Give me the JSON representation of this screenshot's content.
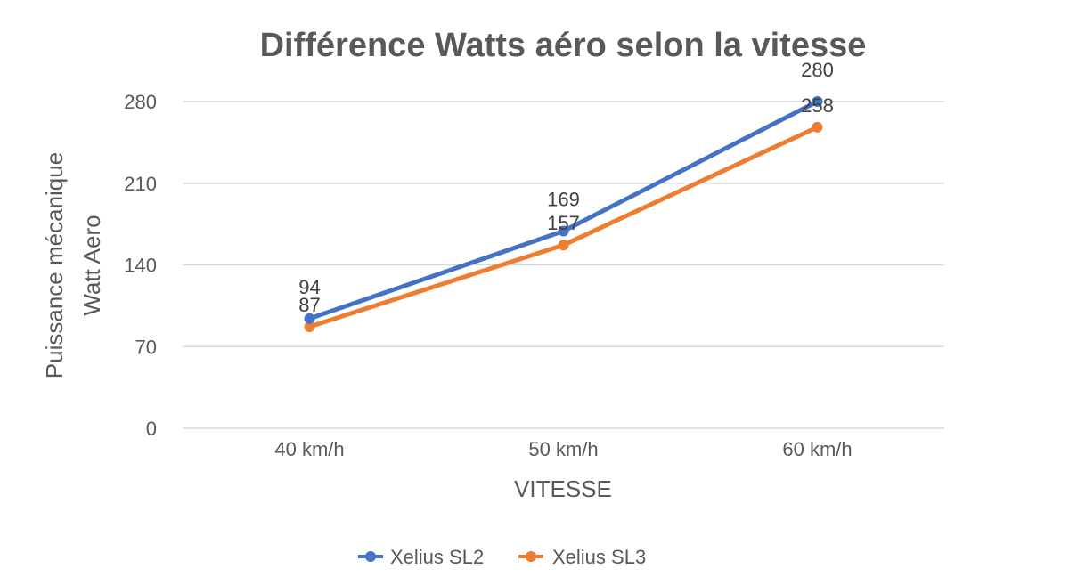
{
  "chart_data": {
    "type": "line",
    "title": "Différence Watts aéro selon la vitesse",
    "categories": [
      "40 km/h",
      "50 km/h",
      "60 km/h"
    ],
    "series": [
      {
        "name": "Xelius SL2",
        "color": "#4472C4",
        "values": [
          94,
          169,
          280
        ]
      },
      {
        "name": "Xelius SL3",
        "color": "#ED7D31",
        "values": [
          87,
          157,
          258
        ]
      }
    ],
    "xlabel": "VITESSE",
    "ylabel_lines": [
      "Puissance mécanique",
      "Watt Aero"
    ],
    "ylim": [
      0,
      280
    ],
    "yticks": [
      0,
      70,
      140,
      210,
      280
    ],
    "grid": true,
    "legend_position": "bottom"
  }
}
